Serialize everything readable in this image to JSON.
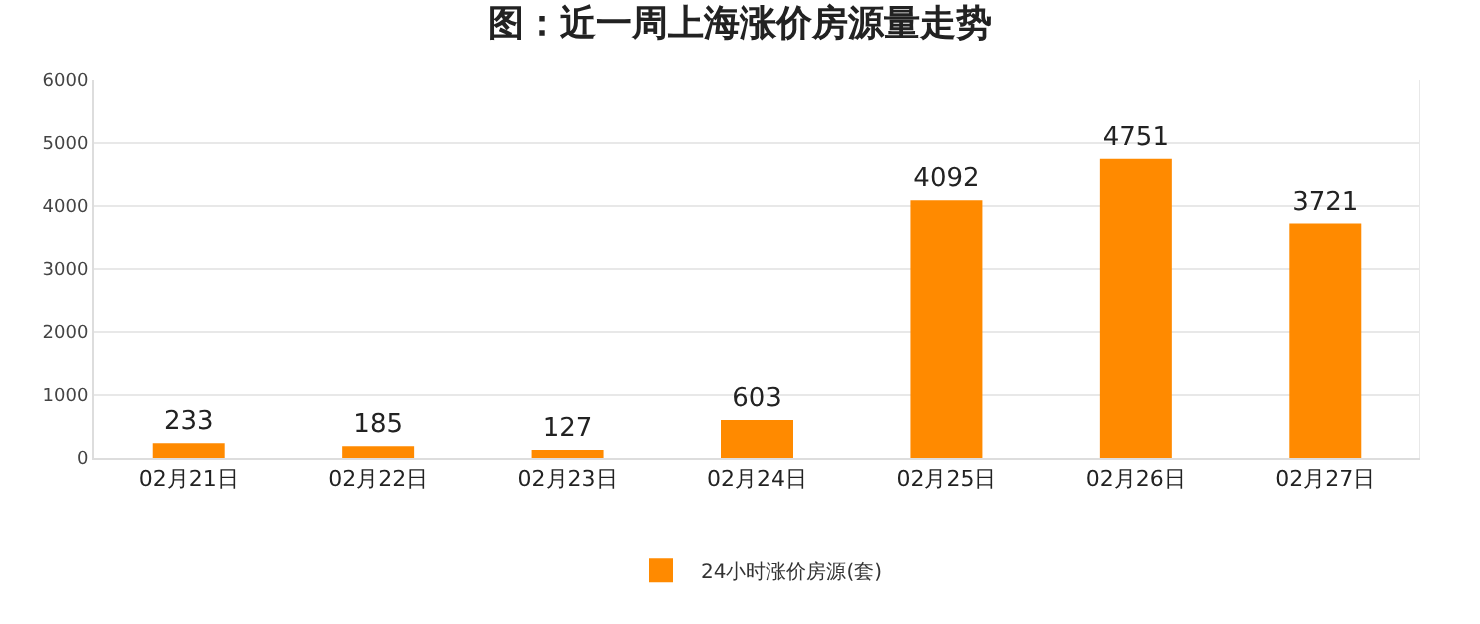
{
  "chart_data": {
    "type": "bar",
    "title": "图：近一周上海涨价房源量走势",
    "categories": [
      "02月21日",
      "02月22日",
      "02月23日",
      "02月24日",
      "02月25日",
      "02月26日",
      "02月27日"
    ],
    "series": [
      {
        "name": "24小时涨价房源(套)",
        "color": "#ff8a00",
        "values": [
          233,
          185,
          127,
          603,
          4092,
          4751,
          3721
        ]
      }
    ],
    "ylim": [
      0,
      6000
    ],
    "yticks": [
      0,
      1000,
      2000,
      3000,
      4000,
      5000,
      6000
    ],
    "grid": "y",
    "legend": "bottom",
    "data_labels": true
  }
}
